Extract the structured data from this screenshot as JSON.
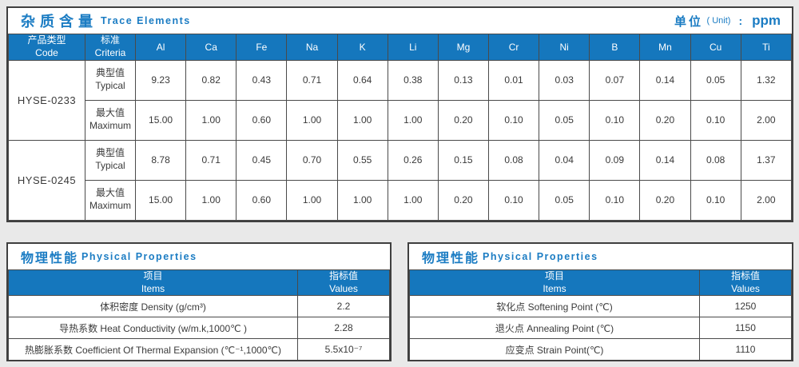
{
  "colors": {
    "header_bg": "#1577bd",
    "title_text": "#1b7cc3",
    "border": "#4a4a4a",
    "outer_border": "#3f3f3f",
    "page_bg": "#e9e9e9",
    "cell_text": "#3a3a3a"
  },
  "trace": {
    "title_zh": "杂质含量",
    "title_en": "Trace Elements",
    "unit_zh": "单位",
    "unit_paren": "( Unit)",
    "unit_colon": ":",
    "unit_value": "ppm",
    "col_code": {
      "zh": "产品类型",
      "en": "Code"
    },
    "col_criteria": {
      "zh": "标准",
      "en": "Criteria"
    },
    "elements": [
      "Al",
      "Ca",
      "Fe",
      "Na",
      "K",
      "Li",
      "Mg",
      "Cr",
      "Ni",
      "B",
      "Mn",
      "Cu",
      "Ti"
    ],
    "products": [
      {
        "code": "HYSE-0233",
        "rows": [
          {
            "label_zh": "典型值",
            "label_en": "Typical",
            "values": [
              "9.23",
              "0.82",
              "0.43",
              "0.71",
              "0.64",
              "0.38",
              "0.13",
              "0.01",
              "0.03",
              "0.07",
              "0.14",
              "0.05",
              "1.32"
            ]
          },
          {
            "label_zh": "最大值",
            "label_en": "Maximum",
            "values": [
              "15.00",
              "1.00",
              "0.60",
              "1.00",
              "1.00",
              "1.00",
              "0.20",
              "0.10",
              "0.05",
              "0.10",
              "0.20",
              "0.10",
              "2.00"
            ]
          }
        ]
      },
      {
        "code": "HYSE-0245",
        "rows": [
          {
            "label_zh": "典型值",
            "label_en": "Typical",
            "values": [
              "8.78",
              "0.71",
              "0.45",
              "0.70",
              "0.55",
              "0.26",
              "0.15",
              "0.08",
              "0.04",
              "0.09",
              "0.14",
              "0.08",
              "1.37"
            ]
          },
          {
            "label_zh": "最大值",
            "label_en": "Maximum",
            "values": [
              "15.00",
              "1.00",
              "0.60",
              "1.00",
              "1.00",
              "1.00",
              "0.20",
              "0.10",
              "0.05",
              "0.10",
              "0.20",
              "0.10",
              "2.00"
            ]
          }
        ]
      }
    ]
  },
  "phys_left": {
    "title_zh": "物理性能",
    "title_en": "Physical Properties",
    "header_item": {
      "zh": "项目",
      "en": "Items"
    },
    "header_value": {
      "zh": "指标值",
      "en": "Values"
    },
    "rows": [
      {
        "item": "体积密度 Density (g/cm³)",
        "value": "2.2"
      },
      {
        "item": "导热系数 Heat Conductivity (w/m.k,1000℃ )",
        "value": "2.28"
      },
      {
        "item": "热膨胀系数 Coefficient Of Thermal Expansion (℃⁻¹,1000℃)",
        "value": "5.5x10⁻⁷"
      }
    ]
  },
  "phys_right": {
    "title_zh": "物理性能",
    "title_en": "Physical Properties",
    "header_item": {
      "zh": "项目",
      "en": "Items"
    },
    "header_value": {
      "zh": "指标值",
      "en": "Values"
    },
    "rows": [
      {
        "item": "软化点 Softening Point (℃)",
        "value": "1250"
      },
      {
        "item": "退火点 Annealing Point (℃)",
        "value": "1150"
      },
      {
        "item": "应变点 Strain Point(℃)",
        "value": "1110"
      }
    ]
  }
}
